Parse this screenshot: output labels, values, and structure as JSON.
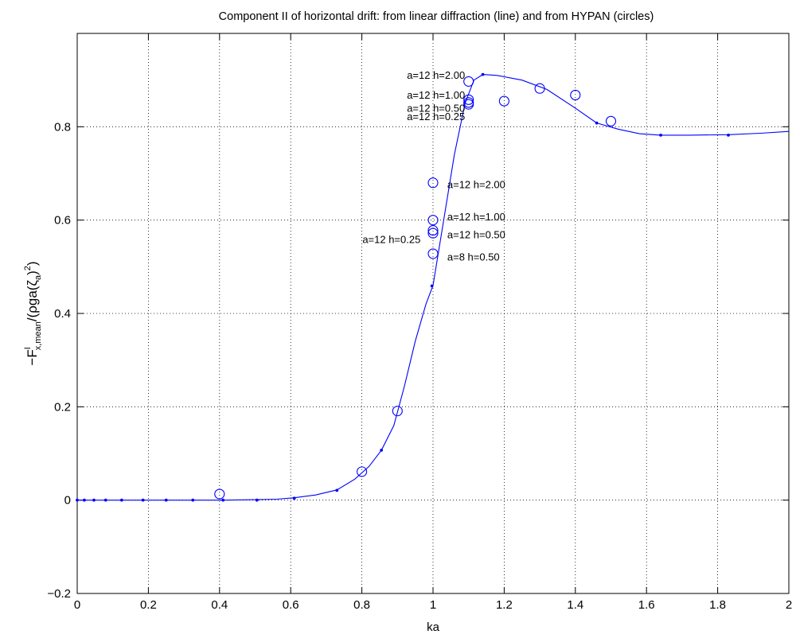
{
  "chart_data": {
    "type": "line",
    "title": "Component II of horizontal drift: from linear diffraction (line) and from HYPAN (circles)",
    "xlabel": "ka",
    "ylabel": {
      "main": "−F",
      "superscript": "I",
      "subscript": "x,mean",
      "rest": "/(ρga(ζ",
      "inner_subscript": "a",
      "close": ")",
      "power": "2",
      "end": ")"
    },
    "xlim": [
      0,
      2
    ],
    "ylim": [
      -0.2,
      1.0
    ],
    "xticks": [
      0,
      0.2,
      0.4,
      0.6,
      0.8,
      1,
      1.2,
      1.4,
      1.6,
      1.8,
      2
    ],
    "xtick_labels": [
      "0",
      "0.2",
      "0.4",
      "0.6",
      "0.8",
      "1",
      "1.2",
      "1.4",
      "1.6",
      "1.8",
      "2"
    ],
    "yticks": [
      -0.2,
      0,
      0.2,
      0.4,
      0.6,
      0.8
    ],
    "ytick_labels": [
      "−0.2",
      "0",
      "0.2",
      "0.4",
      "0.6",
      "0.8"
    ],
    "grid": true,
    "color": "#0000ff",
    "series": [
      {
        "role": "line",
        "x": [
          0,
          0.04,
          0.08,
          0.125,
          0.185,
          0.25,
          0.325,
          0.41,
          0.505,
          0.56,
          0.61,
          0.67,
          0.73,
          0.78,
          0.82,
          0.855,
          0.89,
          0.92,
          0.95,
          0.98,
          1.0,
          1.03,
          1.06,
          1.09,
          1.115,
          1.14,
          1.18,
          1.25,
          1.32,
          1.4,
          1.46,
          1.52,
          1.58,
          1.64,
          1.72,
          1.83,
          1.92,
          2.0
        ],
        "y": [
          0,
          0,
          0,
          0,
          0,
          0,
          0,
          0,
          0.001,
          0.002,
          0.005,
          0.011,
          0.022,
          0.045,
          0.072,
          0.107,
          0.16,
          0.245,
          0.34,
          0.42,
          0.46,
          0.6,
          0.74,
          0.85,
          0.9,
          0.912,
          0.91,
          0.9,
          0.88,
          0.84,
          0.808,
          0.795,
          0.785,
          0.782,
          0.782,
          0.783,
          0.786,
          0.79
        ]
      },
      {
        "role": "line-markers",
        "x": [
          0,
          0.02,
          0.047,
          0.08,
          0.125,
          0.185,
          0.25,
          0.325,
          0.41,
          0.505,
          0.61,
          0.73,
          0.855,
          0.997,
          1.14,
          1.46,
          1.64,
          1.83
        ],
        "y": [
          0,
          0,
          0,
          0,
          0,
          0,
          0,
          0,
          0,
          0,
          0.004,
          0.021,
          0.107,
          0.459,
          0.912,
          0.808,
          0.782,
          0.782
        ]
      },
      {
        "role": "circles",
        "x": [
          0.4,
          0.8,
          0.9,
          1.0,
          1.0,
          1.0,
          1.0,
          1.0,
          1.1,
          1.1,
          1.1,
          1.1,
          1.2,
          1.3,
          1.4,
          1.5
        ],
        "y": [
          0.013,
          0.061,
          0.191,
          0.528,
          0.572,
          0.578,
          0.6,
          0.68,
          0.848,
          0.852,
          0.858,
          0.897,
          0.855,
          0.882,
          0.868,
          0.812
        ]
      }
    ],
    "annotations": [
      {
        "text": "a=12 h=2.00",
        "x": 1.09,
        "y": 0.91,
        "align": "end"
      },
      {
        "text": "a=12 h=1.00",
        "x": 1.09,
        "y": 0.867,
        "align": "end"
      },
      {
        "text": "a=12 h=0.50",
        "x": 1.09,
        "y": 0.839,
        "align": "end"
      },
      {
        "text": "a=12 h=0.25",
        "x": 1.09,
        "y": 0.821,
        "align": "end"
      },
      {
        "text": "a=12 h=2.00",
        "x": 1.04,
        "y": 0.675,
        "align": "start"
      },
      {
        "text": "a=12 h=1.00",
        "x": 1.04,
        "y": 0.606,
        "align": "start"
      },
      {
        "text": "a=12 h=0.50",
        "x": 1.04,
        "y": 0.568,
        "align": "start"
      },
      {
        "text": "a=12 h=0.25",
        "x": 0.965,
        "y": 0.558,
        "align": "end"
      },
      {
        "text": "a=8 h=0.50",
        "x": 1.04,
        "y": 0.52,
        "align": "start"
      }
    ]
  }
}
